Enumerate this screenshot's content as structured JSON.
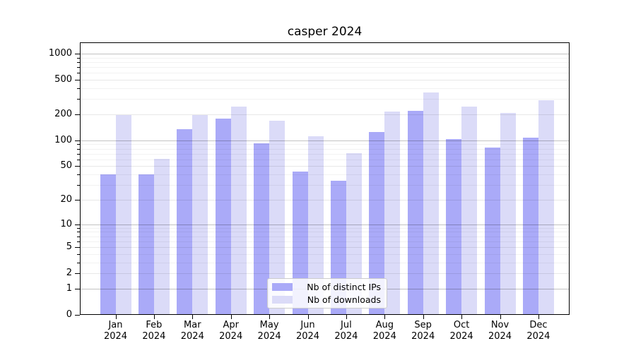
{
  "figure": {
    "background": "#ffffff"
  },
  "chart_data": {
    "type": "bar",
    "title": "casper 2024",
    "categories": [
      "Jan",
      "Feb",
      "Mar",
      "Apr",
      "May",
      "Jun",
      "Jul",
      "Aug",
      "Sep",
      "Oct",
      "Nov",
      "Dec"
    ],
    "year": "2024",
    "series": [
      {
        "name": "Nb of distinct IPs",
        "color": "#aaaaf8",
        "values": [
          40,
          40,
          135,
          178,
          93,
          43,
          34,
          125,
          220,
          104,
          83,
          108
        ]
      },
      {
        "name": "Nb of downloads",
        "color": "#dbdbf8",
        "values": [
          196,
          61,
          198,
          248,
          170,
          112,
          71,
          217,
          358,
          248,
          208,
          292
        ]
      }
    ],
    "yscale": "log1p",
    "ylim": [
      0,
      1350
    ],
    "yticks": [
      0,
      1,
      2,
      5,
      10,
      20,
      50,
      100,
      200,
      500,
      1000
    ],
    "yticks_power": [
      1,
      10,
      100,
      1000
    ],
    "yticks_minor": [
      3,
      4,
      6,
      7,
      8,
      9,
      30,
      40,
      60,
      70,
      80,
      90,
      300,
      400,
      600,
      700,
      800,
      900
    ],
    "xlabel": "",
    "ylabel": "",
    "grid": true,
    "legend_position": "lower center"
  }
}
